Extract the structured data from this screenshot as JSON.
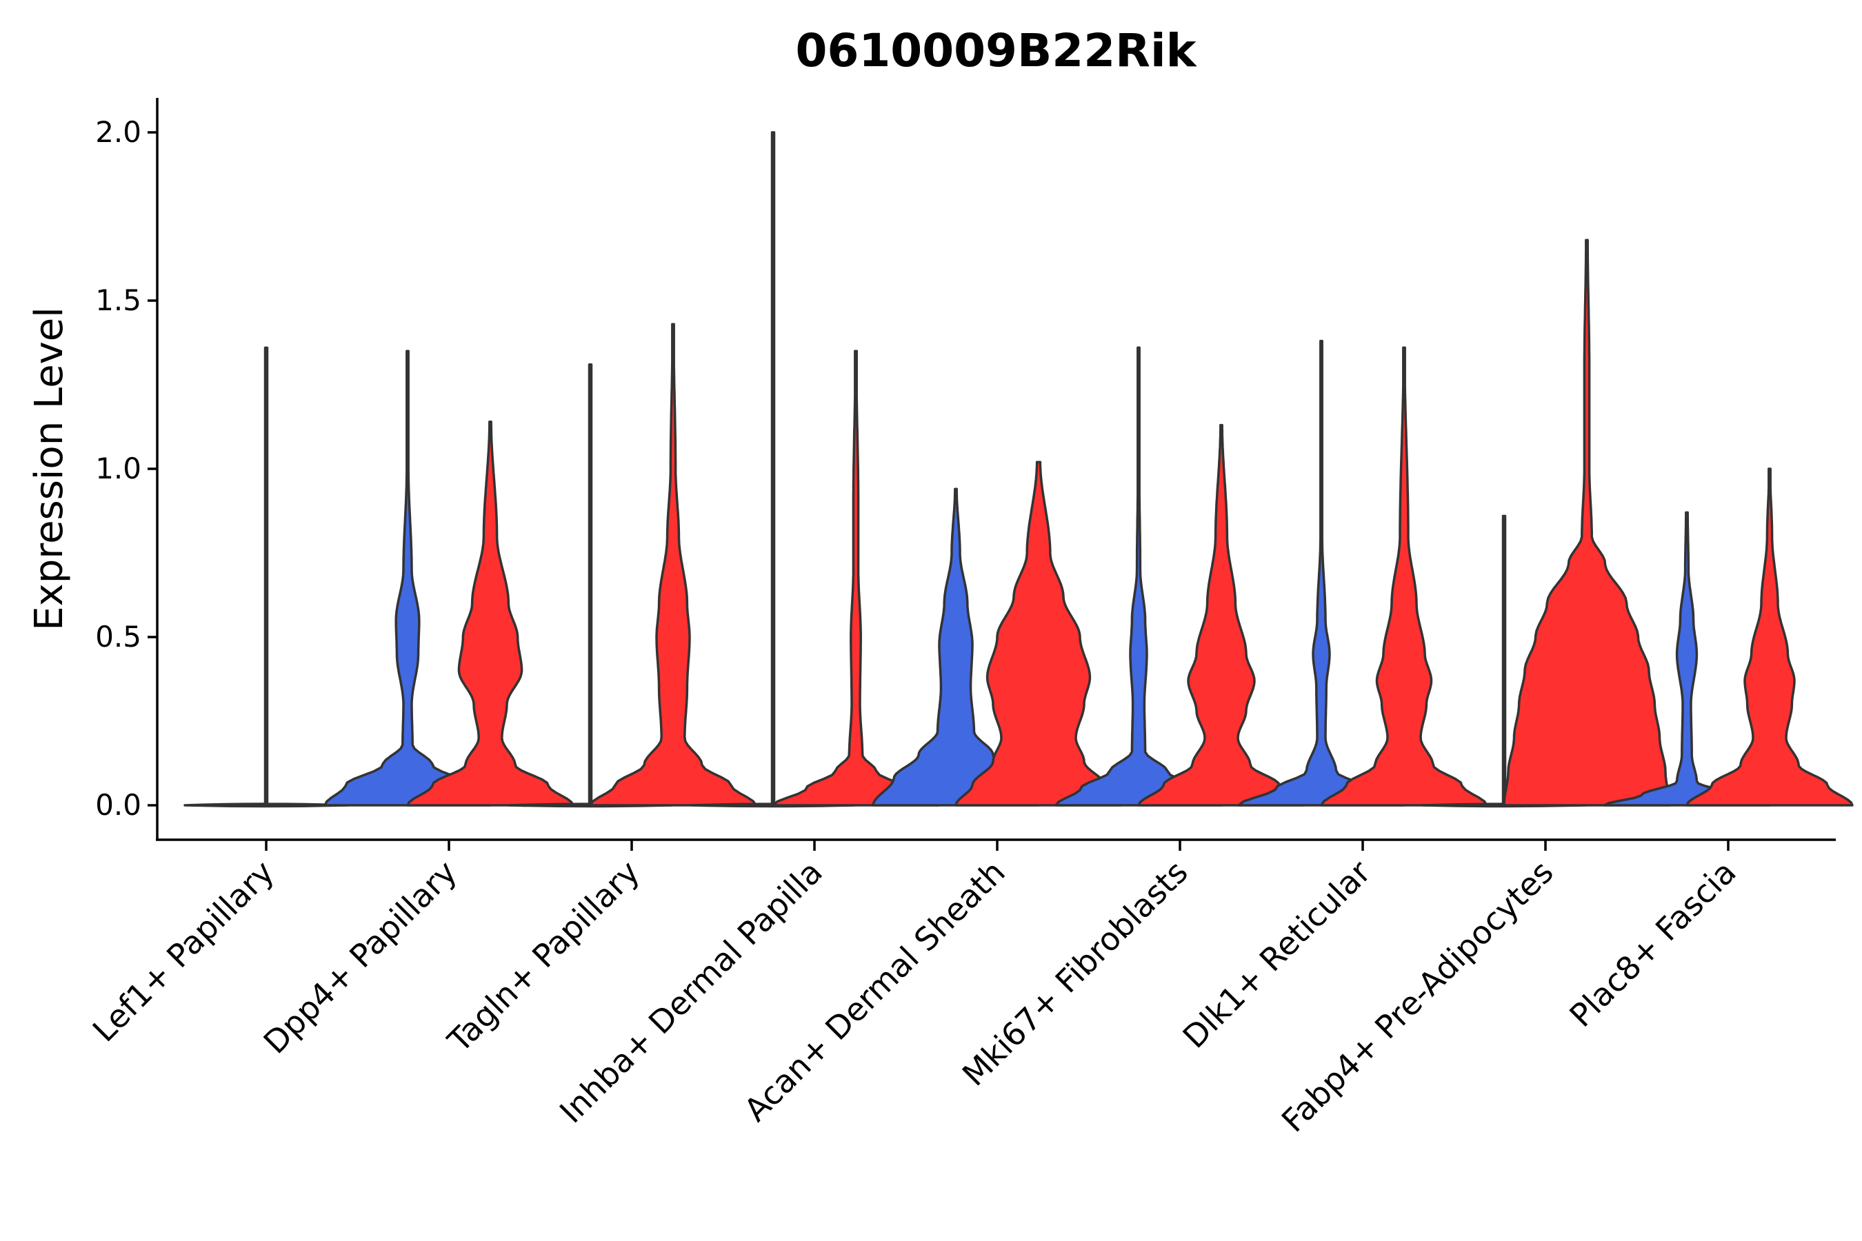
{
  "chart_data": {
    "type": "violin",
    "title": "0610009B22Rik",
    "xlabel": "",
    "ylabel": "Expression Level",
    "ylim": [
      -0.1,
      2.1
    ],
    "yticks": [
      "0.0",
      "0.5",
      "1.0",
      "1.5",
      "2.0"
    ],
    "grid": false,
    "legend": "none",
    "colors": {
      "blue": "#4169E1",
      "red": "#FF3030",
      "outline": "#333333"
    },
    "categories": [
      "Lef1+ Papillary",
      "Dpp4+ Papillary",
      "Tagln+ Papillary",
      "Inhba+ Dermal Papilla",
      "Acan+ Dermal Sheath",
      "Mki67+ Fibroblasts",
      "Dlk1+ Reticular",
      "Fabp4+ Pre-Adipocytes",
      "Plac8+ Fascia"
    ],
    "series": [
      {
        "name": "blue",
        "color": "#4169E1",
        "max": [
          1.36,
          1.35,
          1.31,
          2.0,
          0.94,
          1.36,
          1.38,
          0.86,
          0.87
        ],
        "density": [
          [
            [
              0,
              1.0
            ],
            [
              0.03,
              0.02
            ],
            [
              0.2,
              0.005
            ],
            [
              1.36,
              0.004
            ]
          ],
          [
            [
              0,
              1.0
            ],
            [
              0.06,
              0.75
            ],
            [
              0.12,
              0.3
            ],
            [
              0.18,
              0.06
            ],
            [
              0.3,
              0.05
            ],
            [
              0.45,
              0.13
            ],
            [
              0.55,
              0.14
            ],
            [
              0.7,
              0.05
            ],
            [
              1.0,
              0.01
            ],
            [
              1.35,
              0.003
            ]
          ],
          [
            [
              0,
              1.0
            ],
            [
              0.03,
              0.02
            ],
            [
              0.2,
              0.005
            ],
            [
              1.31,
              0.004
            ]
          ],
          [
            [
              0,
              1.0
            ],
            [
              0.03,
              0.02
            ],
            [
              0.2,
              0.005
            ],
            [
              2.0,
              0.004
            ]
          ],
          [
            [
              0,
              1.0
            ],
            [
              0.08,
              0.75
            ],
            [
              0.15,
              0.45
            ],
            [
              0.22,
              0.22
            ],
            [
              0.35,
              0.18
            ],
            [
              0.48,
              0.2
            ],
            [
              0.6,
              0.14
            ],
            [
              0.75,
              0.05
            ],
            [
              0.94,
              0.01
            ]
          ],
          [
            [
              0,
              1.0
            ],
            [
              0.05,
              0.7
            ],
            [
              0.1,
              0.35
            ],
            [
              0.16,
              0.08
            ],
            [
              0.3,
              0.07
            ],
            [
              0.45,
              0.1
            ],
            [
              0.55,
              0.08
            ],
            [
              0.7,
              0.02
            ],
            [
              1.0,
              0.008
            ],
            [
              1.36,
              0.004
            ]
          ],
          [
            [
              0,
              1.0
            ],
            [
              0.05,
              0.55
            ],
            [
              0.1,
              0.18
            ],
            [
              0.2,
              0.05
            ],
            [
              0.35,
              0.06
            ],
            [
              0.45,
              0.1
            ],
            [
              0.55,
              0.05
            ],
            [
              0.8,
              0.01
            ],
            [
              1.38,
              0.003
            ]
          ],
          [
            [
              0,
              1.0
            ],
            [
              0.03,
              0.02
            ],
            [
              0.2,
              0.005
            ],
            [
              0.86,
              0.004
            ]
          ],
          [
            [
              0,
              1.0
            ],
            [
              0.03,
              0.55
            ],
            [
              0.07,
              0.12
            ],
            [
              0.15,
              0.06
            ],
            [
              0.3,
              0.05
            ],
            [
              0.45,
              0.12
            ],
            [
              0.55,
              0.08
            ],
            [
              0.7,
              0.02
            ],
            [
              0.87,
              0.01
            ]
          ]
        ]
      },
      {
        "name": "red",
        "color": "#FF3030",
        "max": [
          0,
          1.14,
          1.43,
          1.35,
          1.02,
          1.13,
          1.36,
          1.68,
          1.0
        ],
        "density": [
          [],
          [
            [
              0,
              1.0
            ],
            [
              0.06,
              0.7
            ],
            [
              0.12,
              0.3
            ],
            [
              0.2,
              0.14
            ],
            [
              0.3,
              0.2
            ],
            [
              0.4,
              0.38
            ],
            [
              0.5,
              0.33
            ],
            [
              0.6,
              0.22
            ],
            [
              0.8,
              0.08
            ],
            [
              1.14,
              0.01
            ]
          ],
          [
            [
              0,
              1.0
            ],
            [
              0.06,
              0.7
            ],
            [
              0.12,
              0.35
            ],
            [
              0.2,
              0.14
            ],
            [
              0.35,
              0.17
            ],
            [
              0.5,
              0.2
            ],
            [
              0.6,
              0.17
            ],
            [
              0.8,
              0.07
            ],
            [
              1.0,
              0.03
            ],
            [
              1.43,
              0.005
            ]
          ],
          [
            [
              0,
              1.0
            ],
            [
              0.05,
              0.6
            ],
            [
              0.1,
              0.25
            ],
            [
              0.15,
              0.08
            ],
            [
              0.3,
              0.05
            ],
            [
              0.5,
              0.06
            ],
            [
              0.7,
              0.03
            ],
            [
              0.9,
              0.03
            ],
            [
              1.35,
              0.004
            ]
          ],
          [
            [
              0,
              1.0
            ],
            [
              0.06,
              0.8
            ],
            [
              0.13,
              0.55
            ],
            [
              0.2,
              0.45
            ],
            [
              0.3,
              0.55
            ],
            [
              0.38,
              0.62
            ],
            [
              0.5,
              0.5
            ],
            [
              0.62,
              0.3
            ],
            [
              0.75,
              0.14
            ],
            [
              1.02,
              0.02
            ]
          ],
          [
            [
              0,
              1.0
            ],
            [
              0.06,
              0.7
            ],
            [
              0.12,
              0.35
            ],
            [
              0.2,
              0.2
            ],
            [
              0.28,
              0.3
            ],
            [
              0.37,
              0.4
            ],
            [
              0.45,
              0.3
            ],
            [
              0.6,
              0.17
            ],
            [
              0.8,
              0.07
            ],
            [
              1.13,
              0.01
            ]
          ],
          [
            [
              0,
              1.0
            ],
            [
              0.06,
              0.7
            ],
            [
              0.12,
              0.35
            ],
            [
              0.2,
              0.2
            ],
            [
              0.3,
              0.27
            ],
            [
              0.37,
              0.33
            ],
            [
              0.45,
              0.25
            ],
            [
              0.6,
              0.15
            ],
            [
              0.8,
              0.05
            ],
            [
              1.36,
              0.005
            ]
          ],
          [
            [
              0,
              1.0
            ],
            [
              0.1,
              0.95
            ],
            [
              0.2,
              0.88
            ],
            [
              0.3,
              0.82
            ],
            [
              0.4,
              0.75
            ],
            [
              0.5,
              0.62
            ],
            [
              0.6,
              0.48
            ],
            [
              0.72,
              0.22
            ],
            [
              0.8,
              0.06
            ],
            [
              1.0,
              0.03
            ],
            [
              1.3,
              0.03
            ],
            [
              1.68,
              0.01
            ]
          ],
          [
            [
              0,
              1.0
            ],
            [
              0.06,
              0.7
            ],
            [
              0.12,
              0.35
            ],
            [
              0.2,
              0.2
            ],
            [
              0.3,
              0.27
            ],
            [
              0.37,
              0.3
            ],
            [
              0.45,
              0.22
            ],
            [
              0.6,
              0.1
            ],
            [
              0.8,
              0.03
            ],
            [
              1.0,
              0.005
            ]
          ]
        ]
      }
    ]
  }
}
